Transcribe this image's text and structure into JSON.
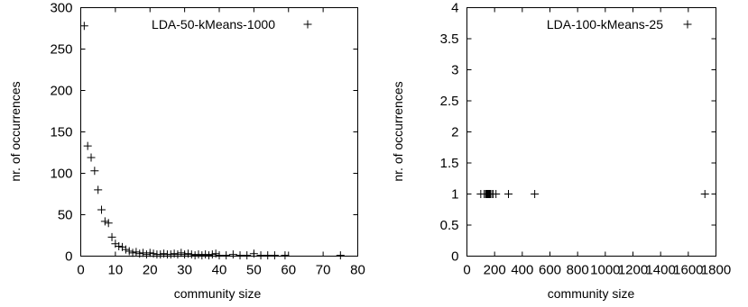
{
  "chart_data": [
    {
      "type": "scatter",
      "xlabel": "community size",
      "ylabel": "nr. of occurrences",
      "xlim": [
        0,
        80
      ],
      "ylim": [
        0,
        300
      ],
      "xticks": [
        0,
        10,
        20,
        30,
        40,
        50,
        60,
        70,
        80
      ],
      "yticks": [
        0,
        50,
        100,
        150,
        200,
        250,
        300
      ],
      "grid": false,
      "legend_position": "top-right",
      "series": [
        {
          "name": "LDA-50-kMeans-1000",
          "marker": "+",
          "x": [
            1,
            2,
            3,
            4,
            5,
            6,
            7,
            8,
            9,
            10,
            11,
            12,
            13,
            14,
            15,
            16,
            17,
            18,
            19,
            20,
            21,
            22,
            23,
            24,
            25,
            26,
            27,
            28,
            29,
            30,
            31,
            32,
            33,
            34,
            35,
            36,
            37,
            38,
            39,
            40,
            42,
            44,
            46,
            48,
            50,
            52,
            54,
            56,
            59,
            75
          ],
          "y": [
            278,
            133,
            119,
            103,
            80,
            56,
            42,
            40,
            23,
            15,
            12,
            11,
            8,
            6,
            4,
            5,
            3,
            4,
            2,
            4,
            3,
            2,
            2,
            3,
            2,
            2,
            3,
            2,
            4,
            2,
            3,
            2,
            1,
            2,
            1,
            2,
            1,
            2,
            3,
            1,
            1,
            2,
            1,
            1,
            3,
            1,
            1,
            1,
            1,
            1
          ]
        }
      ]
    },
    {
      "type": "scatter",
      "xlabel": "community size",
      "ylabel": "nr. of occurrences",
      "xlim": [
        0,
        1800
      ],
      "ylim": [
        0,
        4
      ],
      "xticks": [
        0,
        200,
        400,
        600,
        800,
        1000,
        1200,
        1400,
        1600,
        1800
      ],
      "yticks": [
        0,
        0.5,
        1,
        1.5,
        2,
        2.5,
        3,
        3.5,
        4
      ],
      "grid": false,
      "legend_position": "top-right",
      "series": [
        {
          "name": "LDA-100-kMeans-25",
          "marker": "+",
          "x": [
            100,
            125,
            135,
            140,
            145,
            150,
            155,
            160,
            165,
            170,
            180,
            190,
            210,
            300,
            490,
            1720
          ],
          "y": [
            1,
            1,
            1,
            1,
            1,
            1,
            1,
            1,
            1,
            1,
            1,
            1,
            1,
            1,
            1,
            1
          ]
        }
      ]
    }
  ]
}
